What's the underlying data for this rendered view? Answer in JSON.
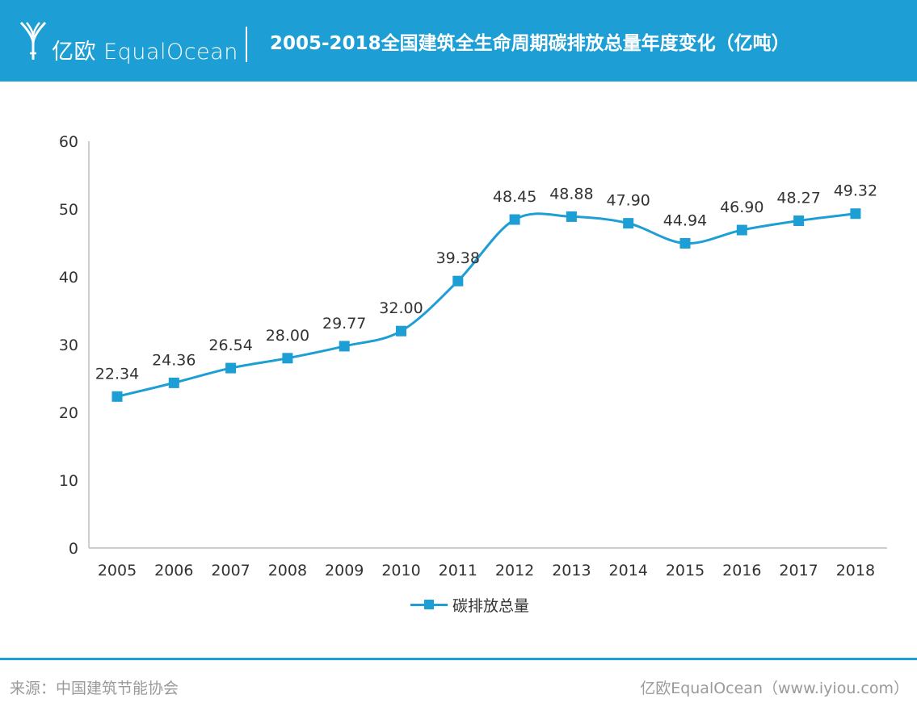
{
  "header": {
    "brand": "亿欧 EqualOcean",
    "title": "2005-2018全国建筑全生命周期碳排放总量年度变化（亿吨）"
  },
  "footer": {
    "source": "来源：中国建筑节能协会",
    "brand": "亿欧EqualOcean（www.iyiou.com）"
  },
  "colors": {
    "accent": "#1d9ed4",
    "axis": "#bfbfbf",
    "text": "#333333",
    "muted": "#9a9a9a"
  },
  "chart_data": {
    "type": "line",
    "title": "",
    "xlabel": "",
    "ylabel": "",
    "categories": [
      "2005",
      "2006",
      "2007",
      "2008",
      "2009",
      "2010",
      "2011",
      "2012",
      "2013",
      "2014",
      "2015",
      "2016",
      "2017",
      "2018"
    ],
    "series": [
      {
        "name": "碳排放总量",
        "values": [
          22.34,
          24.36,
          26.54,
          28.0,
          29.77,
          32.0,
          39.38,
          48.45,
          48.88,
          47.9,
          44.94,
          46.9,
          48.27,
          49.32
        ],
        "labels": [
          "22.34",
          "24.36",
          "26.54",
          "28.00",
          "29.77",
          "32.00",
          "39.38",
          "48.45",
          "48.88",
          "47.90",
          "44.94",
          "46.90",
          "48.27",
          "49.32"
        ],
        "color": "#1d9ed4",
        "marker": "square",
        "smooth": true
      }
    ],
    "ylim": [
      0,
      60
    ],
    "yticks": [
      0,
      10,
      20,
      30,
      40,
      50,
      60
    ],
    "grid": false,
    "legend": "bottom-center"
  }
}
